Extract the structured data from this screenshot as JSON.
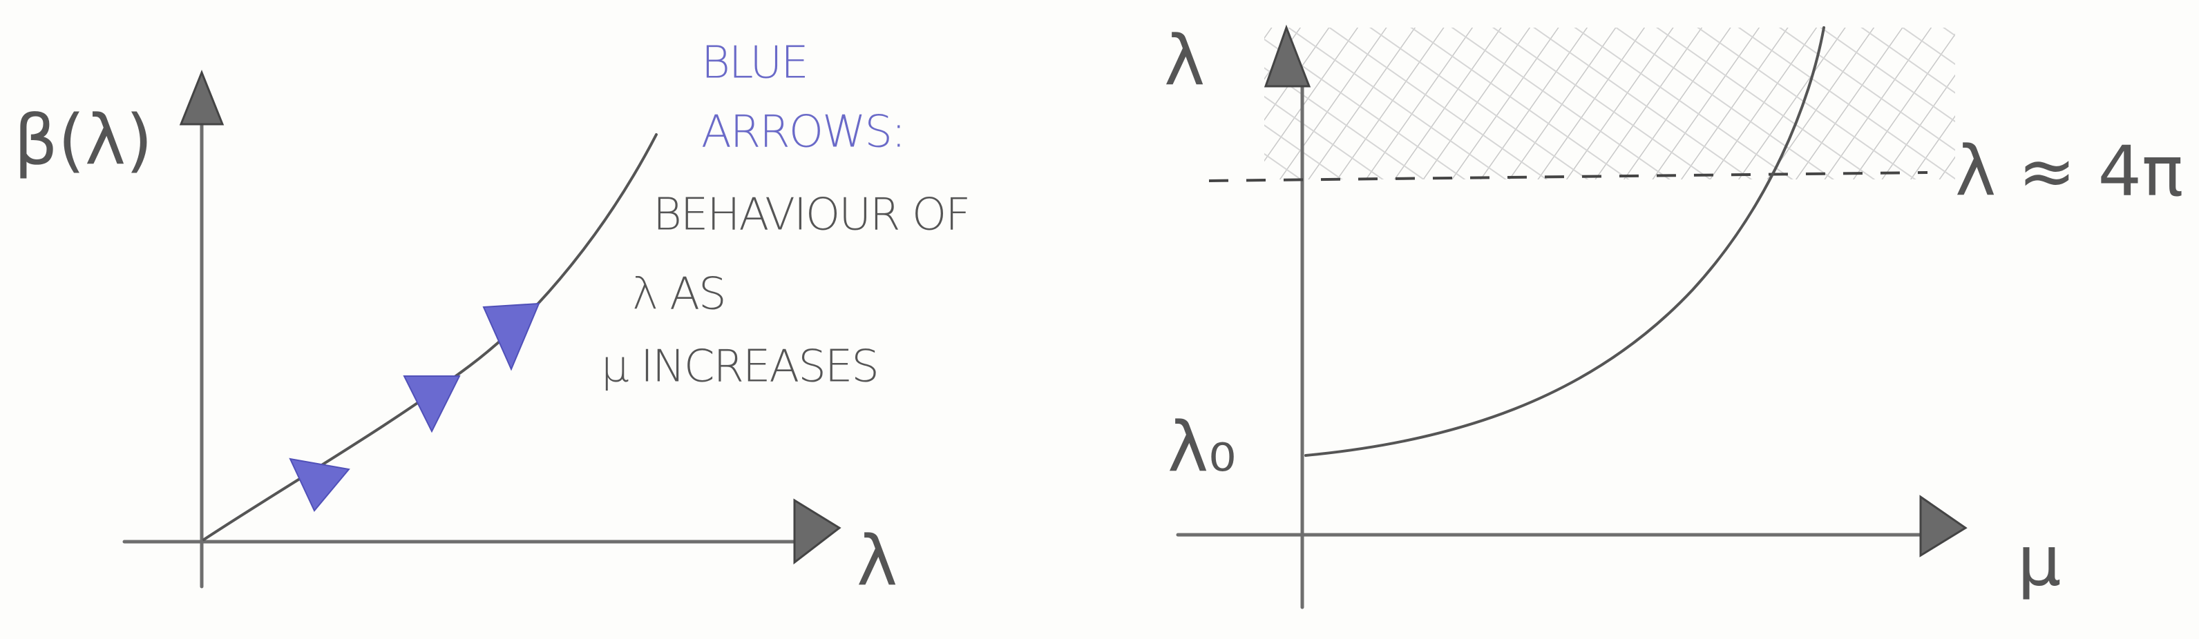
{
  "left_panel": {
    "y_label": "β(λ)",
    "x_label": "λ",
    "note": {
      "title_lines": [
        "BLUE",
        "ARROWS:"
      ],
      "lines": [
        "BEHAVIOUR OF",
        "λ AS",
        "μ INCREASES"
      ]
    }
  },
  "right_panel": {
    "y_label": "λ",
    "x_label": "μ",
    "threshold_label": "λ ≈ 4π",
    "start_label": "λ₀"
  }
}
